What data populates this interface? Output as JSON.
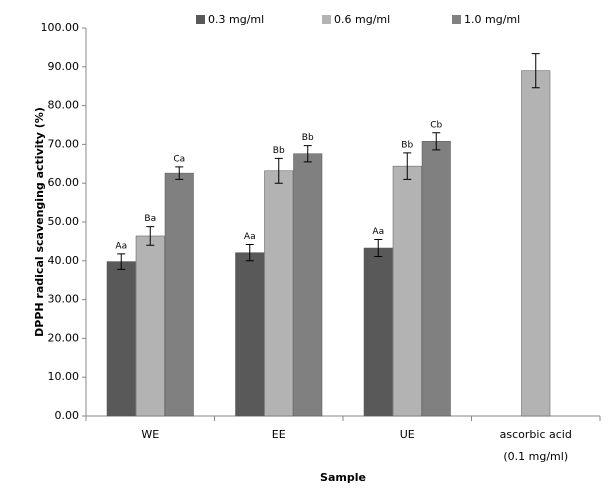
{
  "chart_data": {
    "type": "bar",
    "x_label": "Sample",
    "y_label": "DPPH radical scavenging activity (%)",
    "categories": [
      "WE",
      "EE",
      "UE",
      "ascorbic acid (0.1 mg/ml)"
    ],
    "series": [
      {
        "name": "0.3 mg/ml",
        "color": "#595959",
        "values": [
          39.8,
          42.1,
          43.3,
          null
        ],
        "errors": [
          2.0,
          2.1,
          2.2,
          null
        ],
        "value_labels": [
          "Aa",
          "Aa",
          "Aa",
          null
        ]
      },
      {
        "name": "0.6 mg/ml",
        "color": "#b3b3b3",
        "values": [
          46.4,
          63.2,
          64.4,
          89.0
        ],
        "errors": [
          2.4,
          3.2,
          3.4,
          4.4
        ],
        "value_labels": [
          "Ba",
          "Bb",
          "Bb",
          null
        ]
      },
      {
        "name": "1.0 mg/ml",
        "color": "#808080",
        "values": [
          62.6,
          67.6,
          70.8,
          null
        ],
        "errors": [
          1.6,
          2.1,
          2.2,
          null
        ],
        "value_labels": [
          "Ca",
          "Bb",
          "Cb",
          null
        ]
      }
    ],
    "ylim": [
      0,
      100
    ],
    "yticks": [
      {
        "value": 0,
        "label": "0.00"
      },
      {
        "value": 10,
        "label": "10.00"
      },
      {
        "value": 20,
        "label": "20.00"
      },
      {
        "value": 30,
        "label": "30.00"
      },
      {
        "value": 40,
        "label": "40.00"
      },
      {
        "value": 50,
        "label": "50.00"
      },
      {
        "value": 60,
        "label": "60.00"
      },
      {
        "value": 70,
        "label": "70.00"
      },
      {
        "value": 80,
        "label": "80.00"
      },
      {
        "value": 90,
        "label": "90.00"
      },
      {
        "value": 100,
        "label": "100.00"
      }
    ],
    "legend": "top"
  }
}
